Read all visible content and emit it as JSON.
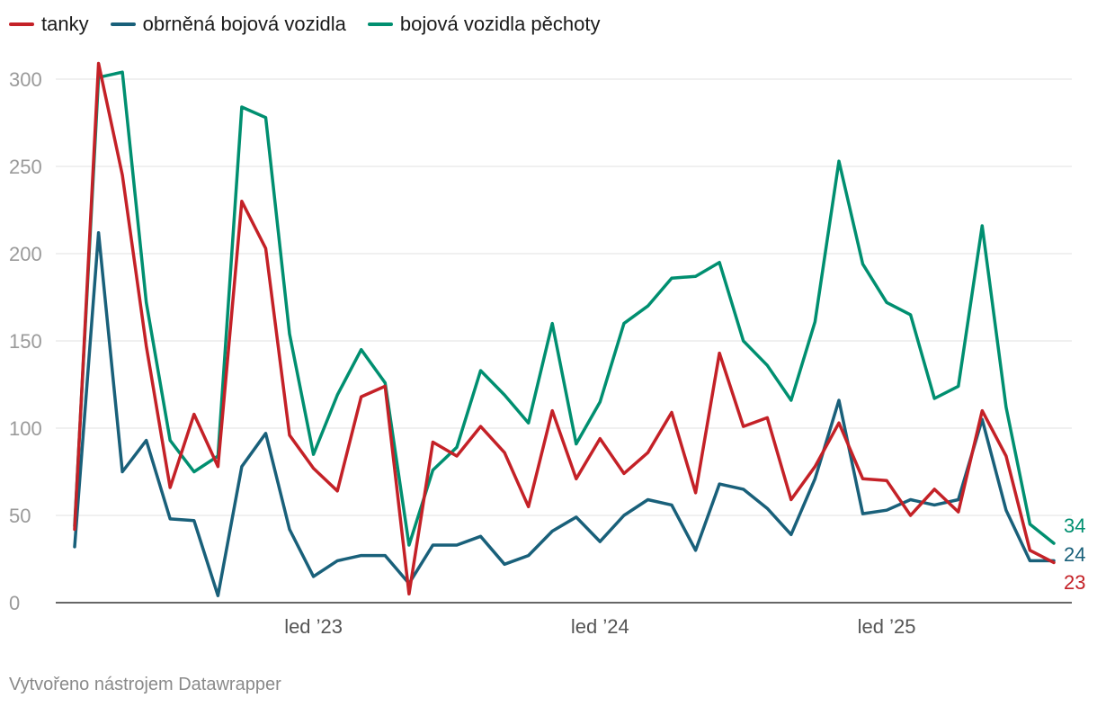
{
  "chart_data": {
    "type": "line",
    "x": [
      "2022-03",
      "2022-04",
      "2022-05",
      "2022-06",
      "2022-07",
      "2022-08",
      "2022-09",
      "2022-10",
      "2022-11",
      "2022-12",
      "2023-01",
      "2023-02",
      "2023-03",
      "2023-04",
      "2023-05",
      "2023-06",
      "2023-07",
      "2023-08",
      "2023-09",
      "2023-10",
      "2023-11",
      "2023-12",
      "2024-01",
      "2024-02",
      "2024-03",
      "2024-04",
      "2024-05",
      "2024-06",
      "2024-07",
      "2024-08",
      "2024-09",
      "2024-10",
      "2024-11",
      "2024-12",
      "2025-01",
      "2025-02",
      "2025-03",
      "2025-04",
      "2025-05",
      "2025-06",
      "2025-07",
      "2025-08"
    ],
    "series": [
      {
        "name": "tanky",
        "color": "#c42127",
        "end_label": "23",
        "values": [
          42,
          309,
          245,
          147,
          66,
          108,
          78,
          230,
          203,
          96,
          77,
          64,
          118,
          124,
          5,
          92,
          84,
          101,
          86,
          55,
          110,
          71,
          94,
          74,
          86,
          109,
          63,
          143,
          101,
          106,
          59,
          78,
          103,
          71,
          70,
          50,
          65,
          52,
          110,
          84,
          30,
          23
        ]
      },
      {
        "name": "obrněná bojová vozidla",
        "color": "#19607a",
        "end_label": "24",
        "values": [
          32,
          212,
          75,
          93,
          48,
          47,
          4,
          78,
          97,
          42,
          15,
          24,
          27,
          27,
          11,
          33,
          33,
          38,
          22,
          27,
          41,
          49,
          35,
          50,
          59,
          56,
          30,
          68,
          65,
          54,
          39,
          71,
          116,
          51,
          53,
          59,
          56,
          59,
          105,
          53,
          24,
          24
        ]
      },
      {
        "name": "bojová vozidla pěchoty",
        "color": "#008f70",
        "end_label": "34",
        "values": [
          44,
          301,
          304,
          172,
          93,
          75,
          84,
          284,
          278,
          154,
          85,
          119,
          145,
          126,
          33,
          76,
          89,
          133,
          119,
          103,
          160,
          91,
          115,
          160,
          170,
          186,
          187,
          195,
          150,
          136,
          116,
          161,
          253,
          194,
          172,
          165,
          117,
          124,
          216,
          112,
          45,
          34
        ]
      }
    ],
    "yticks": [
      "0",
      "50",
      "100",
      "150",
      "200",
      "250",
      "300"
    ],
    "ylim": [
      0,
      315
    ],
    "xtick_labels": [
      {
        "label": "led ’23",
        "date": "2023-01"
      },
      {
        "label": "led ’24",
        "date": "2024-01"
      },
      {
        "label": "led ’25",
        "date": "2025-01"
      }
    ],
    "grid": true,
    "legend_position": "top-left"
  },
  "legend": [
    {
      "label": "tanky",
      "color": "#c42127"
    },
    {
      "label": "obrněná bojová vozidla",
      "color": "#19607a"
    },
    {
      "label": "bojová vozidla pěchoty",
      "color": "#008f70"
    }
  ],
  "footer": {
    "credit": "Vytvořeno nástrojem Datawrapper"
  }
}
